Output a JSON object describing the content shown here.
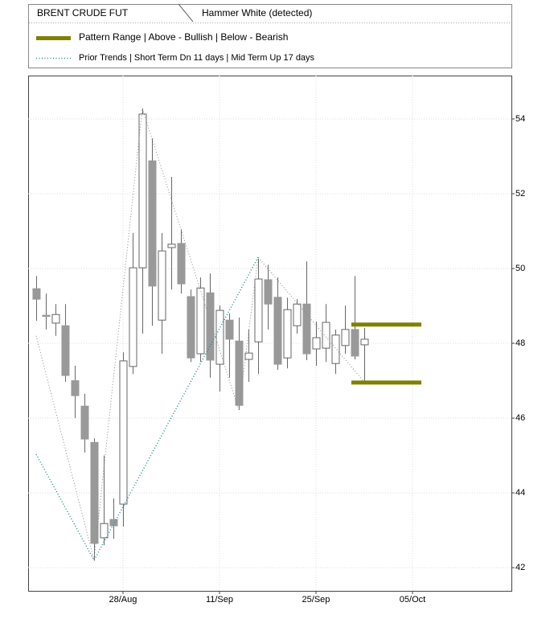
{
  "chart_data": {
    "type": "candlestick",
    "title": "BRENT CRUDE FUT",
    "subtitle": "Hammer White (detected)",
    "ylim": [
      41.38,
      55.16
    ],
    "yticks": [
      42,
      44,
      46,
      48,
      50,
      52,
      54
    ],
    "xlim": [
      -0.83,
      49.25
    ],
    "xticks": [
      {
        "value": 9,
        "label": "28/Aug"
      },
      {
        "value": 19,
        "label": "11/Sep"
      },
      {
        "value": 29,
        "label": "25/Sep"
      },
      {
        "value": 39,
        "label": "05/Oct"
      }
    ],
    "grid": true,
    "up_color": "#ffffff",
    "down_color": "#999999",
    "edge_color": "#666666",
    "open": [
      49.46,
      48.75,
      48.54,
      48.47,
      47.0,
      46.32,
      45.35,
      42.8,
      43.29,
      43.7,
      47.38,
      50.02,
      52.88,
      48.62,
      50.56,
      50.67,
      49.25,
      47.72,
      49.35,
      47.44,
      48.62,
      48.06,
      47.57,
      48.04,
      49.7,
      49.23,
      47.61,
      48.47,
      49.05,
      47.85,
      47.87,
      47.46,
      47.94,
      48.37,
      47.96
    ],
    "high": [
      49.8,
      49.33,
      49.05,
      49.05,
      47.4,
      46.65,
      45.46,
      45.0,
      43.85,
      47.76,
      50.95,
      54.28,
      53.48,
      50.95,
      52.45,
      51.05,
      49.44,
      49.76,
      49.87,
      49.01,
      48.8,
      48.69,
      48.37,
      50.26,
      50.1,
      49.76,
      49.22,
      49.18,
      50.19,
      48.58,
      49.05,
      48.37,
      49.01,
      49.8,
      48.41
    ],
    "low": [
      48.6,
      48.37,
      48.2,
      46.97,
      46.0,
      45.08,
      42.19,
      42.6,
      42.77,
      43.1,
      47.18,
      48.26,
      48.47,
      47.72,
      49.44,
      49.33,
      47.5,
      47.5,
      47.08,
      46.71,
      47.08,
      46.22,
      46.97,
      47.18,
      48.37,
      47.29,
      47.33,
      48.26,
      47.55,
      47.4,
      47.5,
      47.18,
      47.72,
      47.57,
      46.97
    ],
    "close": [
      49.18,
      48.72,
      48.77,
      47.14,
      46.6,
      45.44,
      42.65,
      43.18,
      43.12,
      47.53,
      50.02,
      54.13,
      49.53,
      50.47,
      50.65,
      49.59,
      47.61,
      49.48,
      47.55,
      48.88,
      48.11,
      46.34,
      47.74,
      49.72,
      49.05,
      47.44,
      48.9,
      49.05,
      47.72,
      48.15,
      48.56,
      48.22,
      48.37,
      47.66,
      48.11
    ],
    "pattern_range": {
      "name": "Pattern Range | Above - Bullish | Below - Bearish",
      "color": "#808000",
      "values": [
        48.5,
        46.95
      ],
      "x_range": [
        33,
        40
      ]
    },
    "trends": {
      "name": "Prior Trends | Short Term Dn 11 days | Mid Term Up 17 days",
      "lines": [
        {
          "color": "#2a8a8a",
          "x": [
            0,
            6,
            23
          ],
          "y": [
            45.03,
            42.2,
            50.3
          ]
        },
        {
          "color": "#888888",
          "x": [
            0,
            6,
            11,
            21,
            23,
            34
          ],
          "y": [
            48.2,
            42.2,
            54.28,
            46.22,
            50.3,
            46.97
          ]
        }
      ]
    }
  }
}
